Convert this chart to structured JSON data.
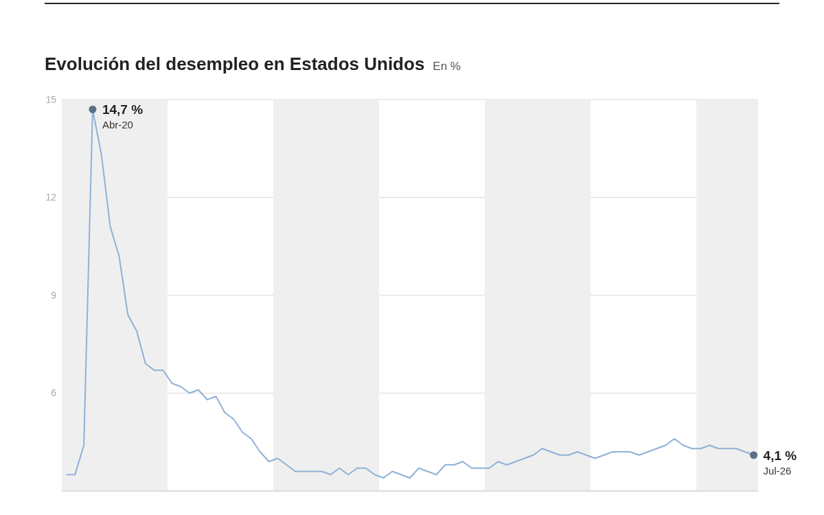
{
  "chart_data": {
    "type": "line",
    "title": "Evolución del desempleo en Estados Unidos",
    "subtitle": "En %",
    "categories": [
      null,
      null,
      null,
      null,
      null,
      null,
      null,
      null,
      null,
      null,
      null,
      null,
      null,
      null,
      null,
      null,
      null,
      null,
      null,
      null,
      null,
      null,
      null,
      null,
      null,
      null,
      null,
      null,
      null,
      null,
      null,
      null,
      null,
      null,
      null,
      null,
      null,
      null,
      null,
      null,
      null,
      null,
      null,
      null,
      null,
      null,
      null,
      null,
      null,
      null,
      null,
      null,
      null,
      null,
      null,
      null,
      null,
      null,
      null,
      null,
      null,
      null,
      null,
      null,
      null,
      null,
      null,
      null,
      null,
      null,
      null,
      null,
      null,
      null,
      null,
      null,
      null,
      null,
      null
    ],
    "series": [
      {
        "color": "#8fb0d6",
        "values": [
          3.5,
          3.5,
          4.4,
          14.7,
          13.3,
          11.1,
          10.2,
          8.4,
          7.9,
          6.9,
          6.7,
          6.7,
          6.3,
          6.2,
          6.0,
          6.1,
          5.8,
          5.9,
          5.4,
          5.2,
          4.8,
          4.6,
          4.2,
          3.9,
          4.0,
          3.8,
          3.6,
          3.6,
          3.6,
          3.6,
          3.5,
          3.7,
          3.5,
          3.7,
          3.7,
          3.5,
          3.4,
          3.6,
          3.5,
          3.4,
          3.7,
          3.6,
          3.5,
          3.8,
          3.8,
          3.9,
          3.7,
          3.7,
          3.7,
          3.9,
          3.8,
          3.9,
          4.0,
          4.1,
          4.3,
          4.2,
          4.1,
          4.1,
          4.2,
          4.1,
          4.0,
          4.1,
          4.2,
          4.2,
          4.2,
          4.1,
          4.2,
          4.3,
          4.4,
          4.6,
          4.4,
          4.3,
          4.3,
          4.4,
          4.3,
          4.3,
          4.3,
          4.2,
          4.1
        ],
        "value_labels": [
          null,
          null,
          null,
          "14,7 %",
          null,
          null,
          null,
          null,
          null,
          null,
          null,
          null,
          null,
          null,
          null,
          null,
          null,
          null,
          null,
          null,
          null,
          null,
          null,
          null,
          null,
          null,
          null,
          null,
          null,
          null,
          null,
          null,
          null,
          null,
          null,
          null,
          null,
          null,
          null,
          null,
          null,
          null,
          null,
          null,
          null,
          null,
          null,
          null,
          null,
          null,
          null,
          null,
          null,
          null,
          null,
          null,
          null,
          null,
          null,
          null,
          null,
          null,
          null,
          null,
          null,
          null,
          null,
          null,
          null,
          null,
          null,
          null,
          null,
          null,
          null,
          null,
          null,
          null,
          "4,1 %"
        ]
      }
    ],
    "annotations": [
      "Abr-20",
      "Jul-26"
    ],
    "ylim": [
      3,
      15
    ],
    "yticks": [
      6,
      9,
      12,
      15
    ],
    "grid": "y",
    "tick_labels": "y",
    "marker": "none",
    "line_style": "solid"
  }
}
